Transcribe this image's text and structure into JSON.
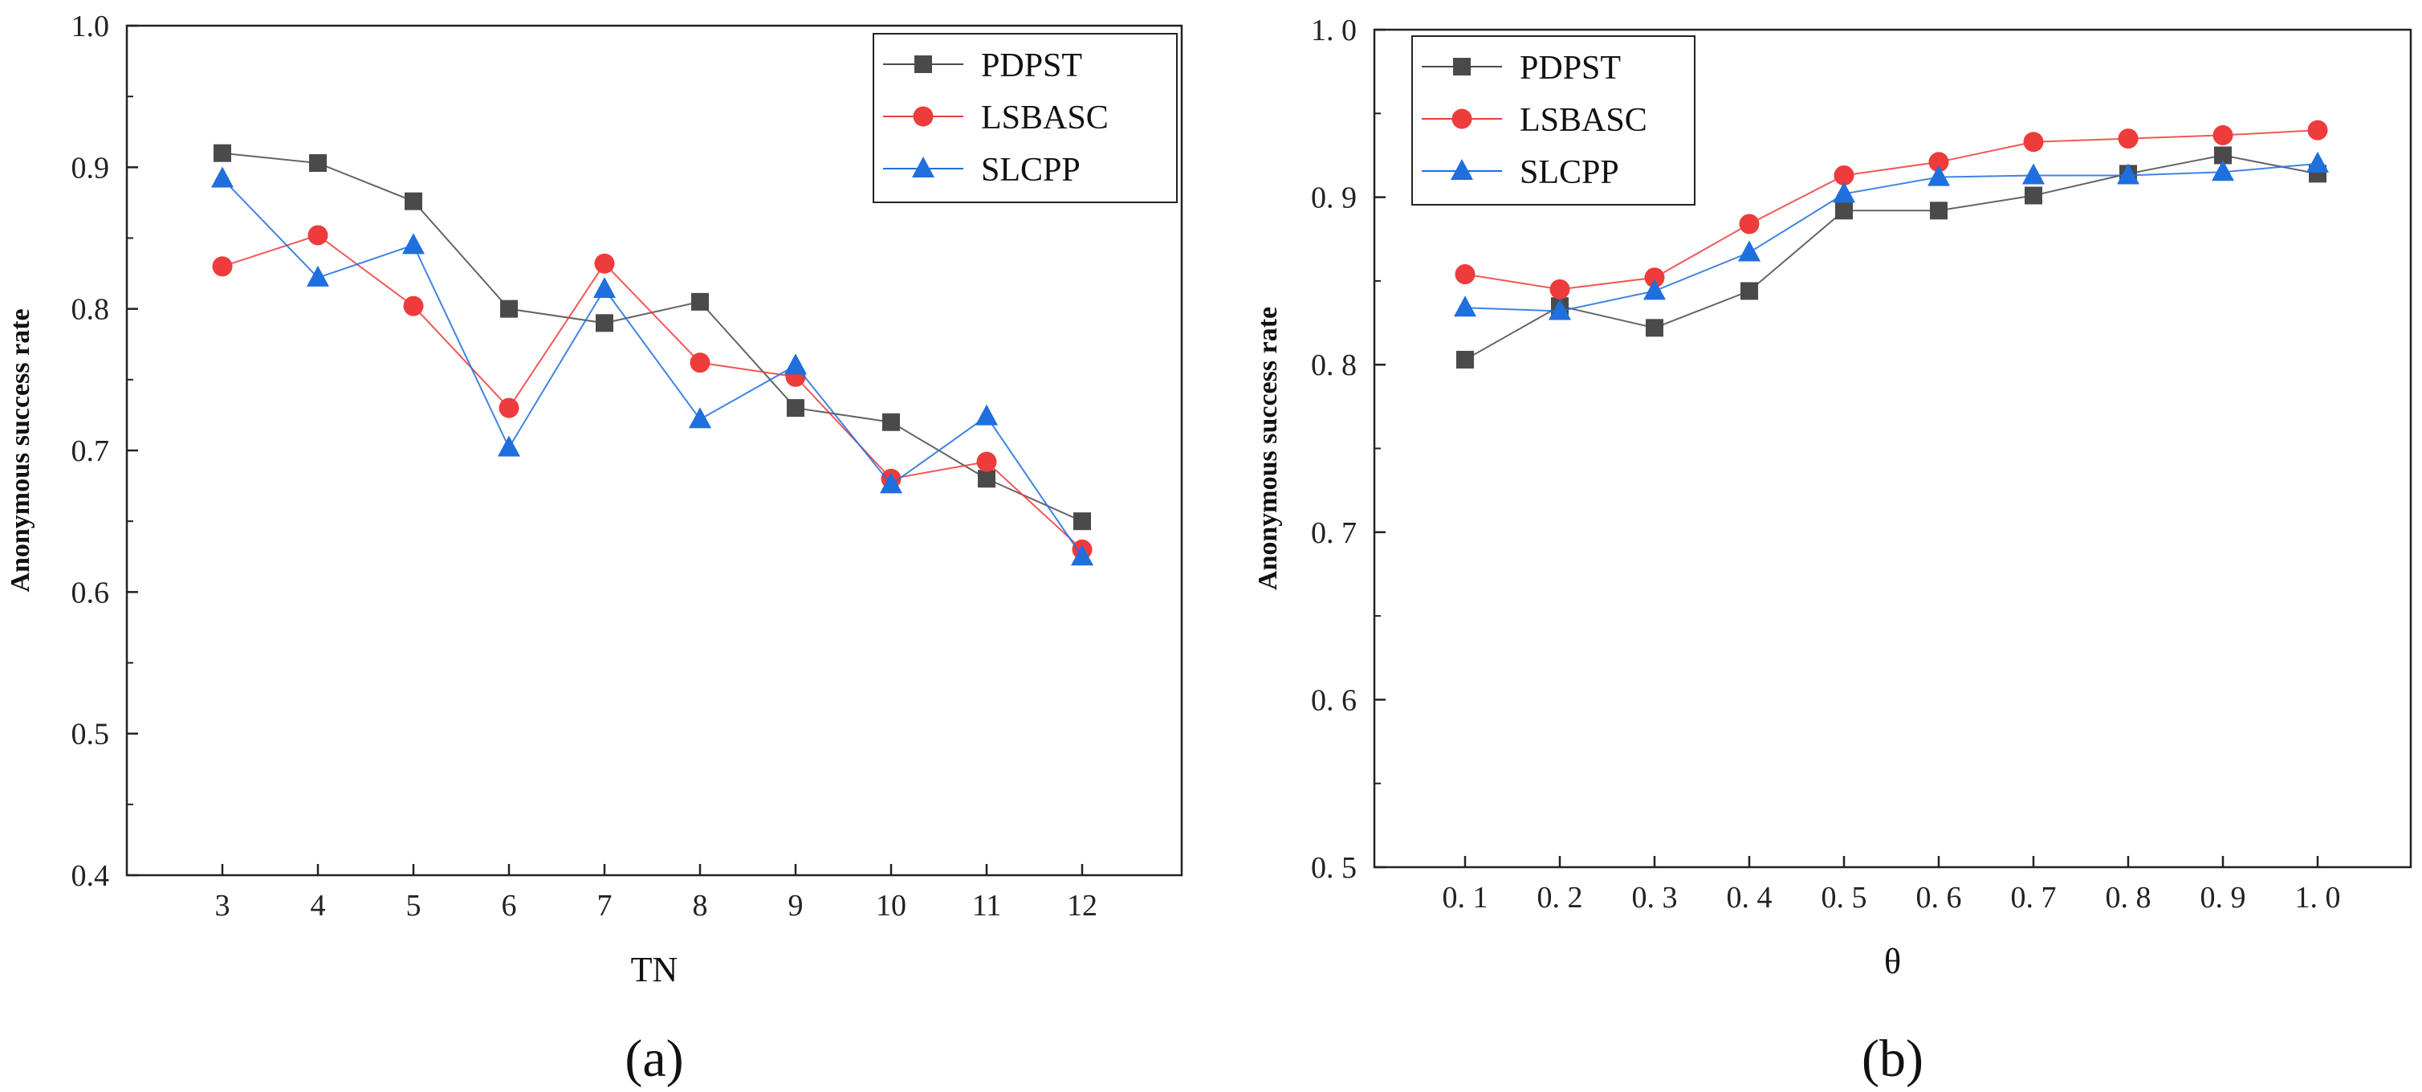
{
  "chart_data": [
    {
      "type": "line",
      "panel_label": "(a)",
      "title": "",
      "xlabel": "TN",
      "ylabel": "Anonymous success rate",
      "categories": [
        "3",
        "4",
        "5",
        "6",
        "7",
        "8",
        "9",
        "10",
        "11",
        "12"
      ],
      "ylim": [
        0.4,
        1.0
      ],
      "yticks": [
        "0.4",
        "0.5",
        "0.6",
        "0.7",
        "0.8",
        "0.9",
        "1.0"
      ],
      "legend_position": "top-right",
      "grid": false,
      "series": [
        {
          "name": "PDPST",
          "marker": "square",
          "color": "#4a4a4a",
          "values": [
            0.91,
            0.903,
            0.876,
            0.8,
            0.79,
            0.805,
            0.73,
            0.72,
            0.68,
            0.65
          ]
        },
        {
          "name": "LSBASC",
          "marker": "circle",
          "color": "#ee3b3b",
          "values": [
            0.83,
            0.852,
            0.802,
            0.73,
            0.832,
            0.762,
            0.752,
            0.68,
            0.692,
            0.63
          ]
        },
        {
          "name": "SLCPP",
          "marker": "triangle",
          "color": "#1f6fde",
          "values": [
            0.892,
            0.822,
            0.845,
            0.702,
            0.814,
            0.722,
            0.76,
            0.676,
            0.724,
            0.625
          ]
        }
      ]
    },
    {
      "type": "line",
      "panel_label": "(b)",
      "title": "",
      "xlabel": "θ",
      "ylabel": "Anonymous success rate",
      "categories": [
        "0. 1",
        "0. 2",
        "0. 3",
        "0. 4",
        "0. 5",
        "0. 6",
        "0. 7",
        "0. 8",
        "0. 9",
        "1. 0"
      ],
      "ylim": [
        0.5,
        1.0
      ],
      "yticks": [
        "0. 5",
        "0. 6",
        "0. 7",
        "0. 8",
        "0. 9",
        "1. 0"
      ],
      "legend_position": "top-left",
      "grid": false,
      "series": [
        {
          "name": "PDPST",
          "marker": "square",
          "color": "#4a4a4a",
          "values": [
            0.803,
            0.835,
            0.822,
            0.844,
            0.892,
            0.892,
            0.901,
            0.914,
            0.925,
            0.914
          ]
        },
        {
          "name": "LSBASC",
          "marker": "circle",
          "color": "#ee3b3b",
          "values": [
            0.854,
            0.845,
            0.852,
            0.884,
            0.913,
            0.921,
            0.933,
            0.935,
            0.937,
            0.94
          ]
        },
        {
          "name": "SLCPP",
          "marker": "triangle",
          "color": "#1f6fde",
          "values": [
            0.834,
            0.832,
            0.844,
            0.867,
            0.902,
            0.912,
            0.913,
            0.913,
            0.915,
            0.92
          ]
        }
      ]
    }
  ]
}
